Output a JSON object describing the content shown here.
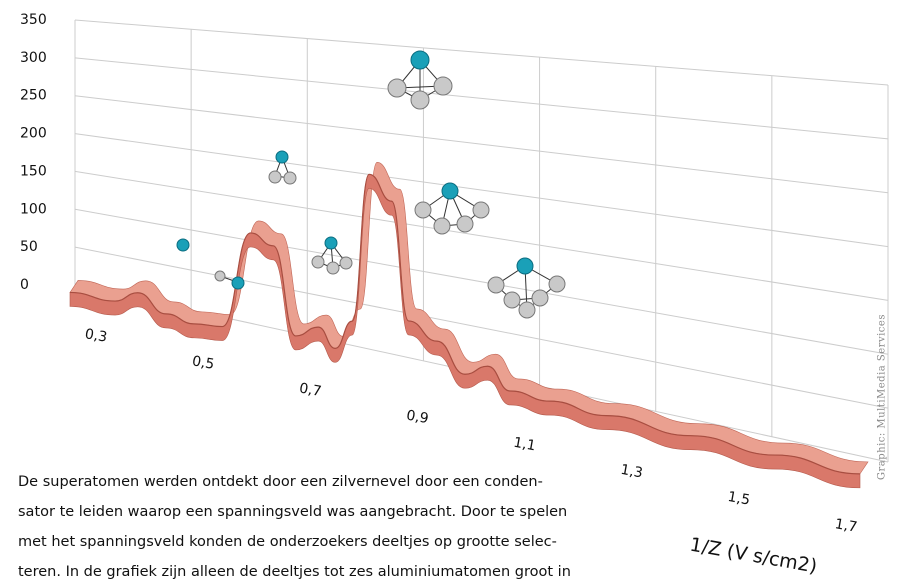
{
  "chart_data": {
    "type": "ribbon",
    "x_axis_label": "1/Z (V s/cm2)",
    "credit": "Graphic: MultiMedia Services",
    "caption": [
      "De superatomen werden ontdekt door een zilvernevel door een conden-",
      "sator te leiden waarop een spanningsveld was aangebracht. Door te spelen",
      "met het spanningsveld konden de onderzoekers deeltjes op grootte selec-",
      "teren. In de grafiek zijn alleen de deeltjes tot zes aluminiumatomen groot in"
    ],
    "x": [
      0.3,
      0.38,
      0.42,
      0.47,
      0.52,
      0.57,
      0.62,
      0.66,
      0.7,
      0.74,
      0.77,
      0.8,
      0.83,
      0.87,
      0.9,
      0.95,
      1.0,
      1.04,
      1.08,
      1.15,
      1.25,
      1.4,
      1.55,
      1.7
    ],
    "values": [
      10,
      12,
      30,
      10,
      5,
      10,
      150,
      140,
      20,
      40,
      15,
      60,
      280,
      250,
      80,
      60,
      20,
      40,
      10,
      8,
      5,
      3,
      2,
      2
    ],
    "color": "#d9786a",
    "xlim": [
      0.3,
      1.7
    ],
    "xticks": [
      {
        "value": 0.3,
        "label": "0,3"
      },
      {
        "value": 0.5,
        "label": "0,5"
      },
      {
        "value": 0.7,
        "label": "0,7"
      },
      {
        "value": 0.9,
        "label": "0,9"
      },
      {
        "value": 1.1,
        "label": "1,1"
      },
      {
        "value": 1.3,
        "label": "1,3"
      },
      {
        "value": 1.5,
        "label": "1,5"
      },
      {
        "value": 1.7,
        "label": "1,7"
      }
    ],
    "ylim": [
      0,
      350
    ],
    "yticks": [
      0,
      50,
      100,
      150,
      200,
      250,
      300,
      350
    ],
    "grid": true
  }
}
